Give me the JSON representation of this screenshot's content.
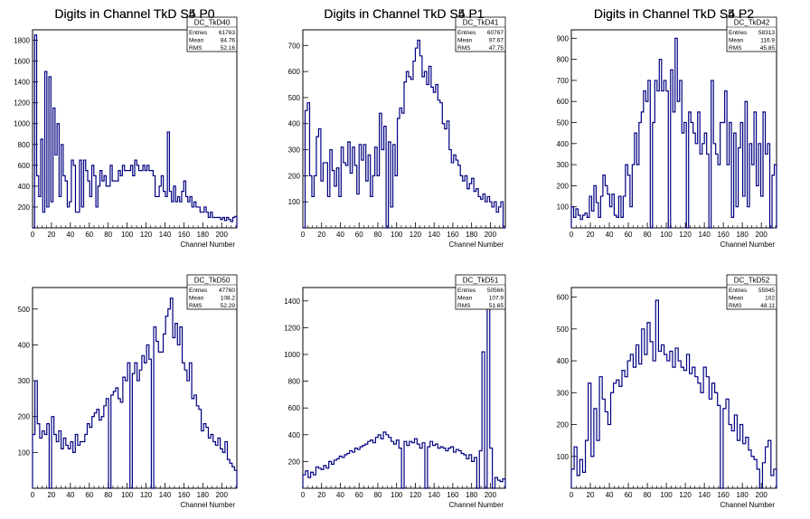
{
  "chart_data": [
    {
      "type": "bar",
      "title": "Digits in Channel TkD S4 P0",
      "xlabel": "Channel Number",
      "ylabel": "",
      "xlim": [
        0,
        216
      ],
      "ylim": [
        0,
        1900
      ],
      "xticks": [
        0,
        20,
        40,
        60,
        80,
        100,
        120,
        140,
        160,
        180,
        200
      ],
      "yticks": [
        200,
        400,
        600,
        800,
        1000,
        1200,
        1400,
        1600,
        1800
      ],
      "stats": {
        "name": "DC_TkD40",
        "entries": "61763",
        "mean": "84.76",
        "rms": "52.16"
      },
      "series": [
        {
          "values": [
            0,
            1850,
            500,
            300,
            850,
            150,
            1500,
            200,
            1450,
            250,
            1150,
            700,
            1000,
            300,
            800,
            500,
            450,
            200,
            250,
            650,
            600,
            150,
            150,
            650,
            200,
            650,
            550,
            450,
            300,
            600,
            500,
            200,
            400,
            550,
            450,
            500,
            400,
            400,
            600,
            450,
            450,
            450,
            550,
            500,
            600,
            550,
            550,
            550,
            600,
            500,
            650,
            600,
            550,
            550,
            600,
            550,
            600,
            550,
            550,
            500,
            300,
            300,
            400,
            500,
            350,
            300,
            920,
            350,
            250,
            400,
            250,
            300,
            250,
            350,
            450,
            300,
            250,
            300,
            200,
            250,
            200,
            200,
            150,
            150,
            200,
            150,
            100,
            150,
            100,
            100,
            100,
            100,
            80,
            100,
            70,
            100,
            80,
            60,
            100,
            110
          ]
        }
      ]
    },
    {
      "type": "bar",
      "title": "Digits in Channel TkD S4 P1",
      "xlabel": "Channel Number",
      "ylabel": "",
      "xlim": [
        0,
        216
      ],
      "ylim": [
        0,
        760
      ],
      "xticks": [
        0,
        20,
        40,
        60,
        80,
        100,
        120,
        140,
        160,
        180,
        200
      ],
      "yticks": [
        100,
        200,
        300,
        400,
        500,
        600,
        700
      ],
      "stats": {
        "name": "DC_TkD41",
        "entries": "60767",
        "mean": "97.67",
        "rms": "47.75"
      },
      "series": [
        {
          "values": [
            0,
            450,
            480,
            200,
            120,
            200,
            350,
            380,
            180,
            250,
            250,
            120,
            300,
            220,
            160,
            230,
            120,
            310,
            250,
            240,
            330,
            210,
            310,
            240,
            130,
            320,
            260,
            320,
            180,
            280,
            120,
            200,
            310,
            200,
            440,
            300,
            390,
            0,
            330,
            80,
            320,
            200,
            420,
            460,
            440,
            560,
            600,
            580,
            570,
            640,
            690,
            720,
            660,
            580,
            600,
            550,
            620,
            540,
            520,
            550,
            490,
            480,
            400,
            380,
            410,
            300,
            250,
            280,
            260,
            240,
            200,
            180,
            200,
            150,
            170,
            190,
            140,
            150,
            120,
            110,
            130,
            100,
            120,
            100,
            80,
            100,
            60,
            80,
            100,
            0
          ]
        }
      ]
    },
    {
      "type": "bar",
      "title": "Digits in Channel TkD S4 P2",
      "xlabel": "Channel Number",
      "ylabel": "",
      "xlim": [
        0,
        216
      ],
      "ylim": [
        0,
        940
      ],
      "xticks": [
        0,
        20,
        40,
        60,
        80,
        100,
        120,
        140,
        160,
        180,
        200
      ],
      "yticks": [
        100,
        200,
        300,
        400,
        500,
        600,
        700,
        800,
        900
      ],
      "stats": {
        "name": "DC_TkD42",
        "entries": "58313",
        "mean": "116.9",
        "rms": "45.85"
      },
      "series": [
        {
          "values": [
            100,
            50,
            90,
            60,
            40,
            60,
            70,
            50,
            150,
            80,
            200,
            120,
            50,
            150,
            250,
            200,
            160,
            100,
            160,
            60,
            50,
            150,
            50,
            150,
            300,
            250,
            100,
            300,
            450,
            300,
            500,
            550,
            650,
            600,
            700,
            0,
            500,
            700,
            650,
            800,
            650,
            700,
            650,
            0,
            750,
            550,
            900,
            600,
            700,
            450,
            500,
            0,
            550,
            500,
            450,
            400,
            550,
            350,
            400,
            450,
            350,
            0,
            700,
            400,
            350,
            300,
            500,
            500,
            650,
            300,
            500,
            50,
            450,
            100,
            380,
            500,
            150,
            600,
            100,
            400,
            300,
            550,
            200,
            400,
            150,
            550,
            350,
            400,
            0,
            250,
            300
          ]
        }
      ]
    },
    {
      "type": "bar",
      "title": "Digits in Channel TkD S5 P0",
      "xlabel": "Channel Number",
      "ylabel": "",
      "xlim": [
        0,
        216
      ],
      "ylim": [
        0,
        560
      ],
      "xticks": [
        0,
        20,
        40,
        60,
        80,
        100,
        120,
        140,
        160,
        180,
        200
      ],
      "yticks": [
        100,
        200,
        300,
        400,
        500
      ],
      "stats": {
        "name": "DC_TkD50",
        "entries": "47760",
        "mean": "108.2",
        "rms": "52.29"
      },
      "series": [
        {
          "values": [
            150,
            300,
            180,
            140,
            160,
            150,
            180,
            0,
            200,
            150,
            130,
            160,
            110,
            140,
            120,
            110,
            130,
            100,
            150,
            120,
            130,
            130,
            150,
            180,
            170,
            200,
            210,
            220,
            190,
            200,
            230,
            250,
            0,
            260,
            270,
            280,
            250,
            240,
            310,
            300,
            350,
            0,
            320,
            350,
            300,
            330,
            370,
            350,
            400,
            360,
            0,
            450,
            410,
            380,
            380,
            430,
            480,
            500,
            530,
            420,
            460,
            400,
            450,
            350,
            330,
            300,
            350,
            250,
            260,
            230,
            220,
            160,
            180,
            170,
            140,
            150,
            130,
            120,
            140,
            110,
            100,
            130,
            80,
            70,
            60,
            50
          ]
        }
      ]
    },
    {
      "type": "bar",
      "title": "Digits in Channel TkD S5 P1",
      "xlabel": "Channel Number",
      "ylabel": "",
      "xlim": [
        0,
        216
      ],
      "ylim": [
        0,
        1500
      ],
      "xticks": [
        0,
        20,
        40,
        60,
        80,
        100,
        120,
        140,
        160,
        180,
        200
      ],
      "yticks": [
        200,
        400,
        600,
        800,
        1000,
        1200,
        1400
      ],
      "stats": {
        "name": "DC_TkD51",
        "entries": "50566",
        "mean": "107.9",
        "rms": "51.65"
      },
      "series": [
        {
          "values": [
            100,
            130,
            80,
            120,
            100,
            160,
            150,
            140,
            170,
            150,
            200,
            180,
            210,
            220,
            240,
            230,
            250,
            260,
            280,
            270,
            300,
            290,
            310,
            320,
            330,
            350,
            360,
            340,
            380,
            400,
            370,
            420,
            400,
            380,
            350,
            330,
            360,
            300,
            0,
            350,
            320,
            350,
            340,
            370,
            330,
            300,
            340,
            0,
            310,
            350,
            320,
            330,
            300,
            310,
            300,
            280,
            300,
            310,
            270,
            290,
            280,
            260,
            250,
            220,
            250,
            200,
            230,
            0,
            280,
            1020,
            0,
            1400,
            300,
            0,
            80,
            60,
            50,
            70
          ]
        }
      ]
    },
    {
      "type": "bar",
      "title": "Digits in Channel TkD S5 P2",
      "xlabel": "Channel Number",
      "ylabel": "",
      "xlim": [
        0,
        216
      ],
      "ylim": [
        0,
        630
      ],
      "xticks": [
        0,
        20,
        40,
        60,
        80,
        100,
        120,
        140,
        160,
        180,
        200
      ],
      "yticks": [
        100,
        200,
        300,
        400,
        500,
        600
      ],
      "stats": {
        "name": "DC_TkD52",
        "entries": "55945",
        "mean": "102",
        "rms": "48.11"
      },
      "series": [
        {
          "values": [
            60,
            130,
            40,
            90,
            50,
            150,
            330,
            100,
            250,
            150,
            350,
            280,
            240,
            200,
            300,
            330,
            340,
            320,
            370,
            350,
            400,
            420,
            380,
            450,
            390,
            500,
            420,
            520,
            460,
            400,
            590,
            430,
            450,
            420,
            400,
            430,
            380,
            440,
            400,
            380,
            370,
            420,
            360,
            380,
            350,
            330,
            300,
            380,
            350,
            280,
            330,
            300,
            260,
            0,
            250,
            280,
            200,
            180,
            230,
            150,
            200,
            140,
            160,
            120,
            100,
            90,
            60,
            0,
            80,
            130,
            150,
            40,
            60
          ]
        }
      ]
    }
  ]
}
